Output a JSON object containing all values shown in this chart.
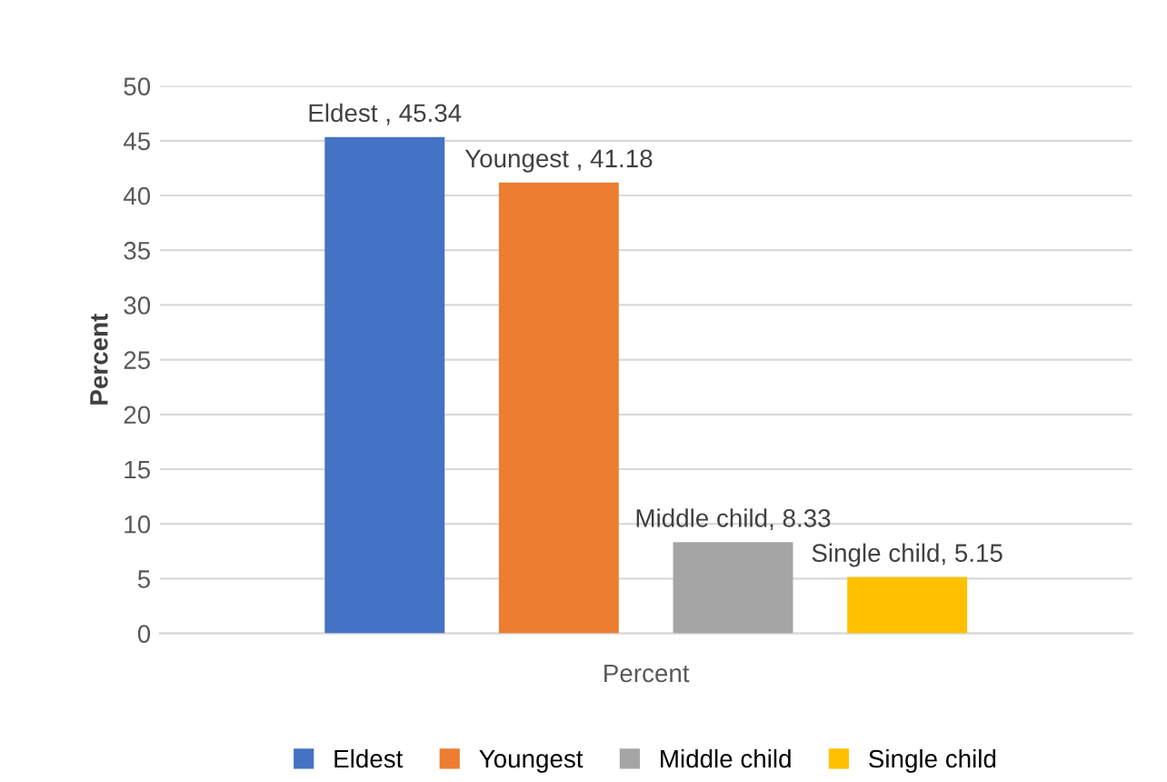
{
  "chart_data": {
    "type": "bar",
    "categories": [
      null
    ],
    "xlabel": "Percent",
    "ylabel": "Percent",
    "series": [
      {
        "name": "Eldest",
        "color": "#4472c4",
        "values": [
          45.34
        ],
        "value_labels": [
          "Eldest , 45.34"
        ]
      },
      {
        "name": "Youngest",
        "color": "#ed7d31",
        "values": [
          41.18
        ],
        "value_labels": [
          "Youngest , 41.18"
        ]
      },
      {
        "name": "Middle child",
        "color": "#a5a5a5",
        "values": [
          8.33
        ],
        "value_labels": [
          "Middle child, 8.33"
        ]
      },
      {
        "name": "Single child",
        "color": "#ffc000",
        "values": [
          5.15
        ],
        "value_labels": [
          "Single child, 5.15"
        ]
      }
    ],
    "ylim": [
      0,
      50
    ],
    "yticks": [
      0,
      5,
      10,
      15,
      20,
      25,
      30,
      35,
      40,
      45,
      50
    ],
    "grid": "y",
    "legend": "bottom"
  }
}
